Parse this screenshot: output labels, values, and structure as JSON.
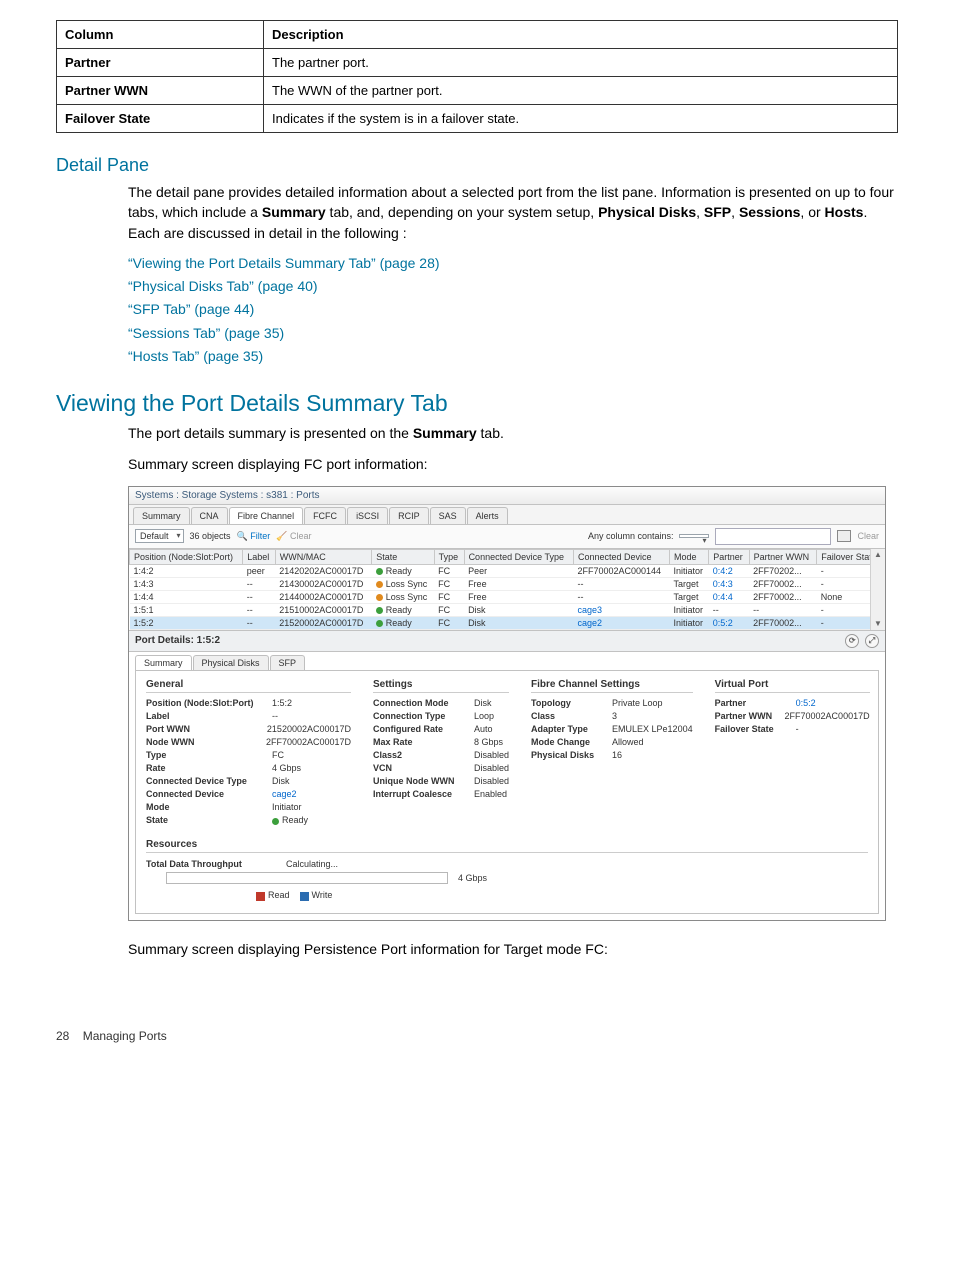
{
  "def_table": {
    "header": {
      "col1": "Column",
      "col2": "Description"
    },
    "rows": [
      {
        "c1": "Partner",
        "c2": "The partner port."
      },
      {
        "c1": "Partner WWN",
        "c2": "The WWN of the partner port."
      },
      {
        "c1": "Failover State",
        "c2": "Indicates if the system is in a failover state."
      }
    ]
  },
  "detail_pane": {
    "heading": "Detail Pane",
    "para_lead": "The detail pane provides detailed information about a selected port from the list pane. Information is presented on up to four tabs, which include a ",
    "para_mid1": " tab, and, depending on your system setup, ",
    "para_tail": ".  Each are discussed in detail in the following :",
    "bold_terms": {
      "summary": "Summary",
      "pd": "Physical Disks",
      "sfp": "SFP",
      "sessions": "Sessions",
      "hosts": "Hosts"
    },
    "links": [
      "“Viewing the Port Details Summary Tab” (page 28)",
      "“Physical Disks Tab” (page 40)",
      "“SFP Tab” (page 44)",
      "“Sessions Tab” (page 35)",
      "“Hosts Tab” (page 35)"
    ]
  },
  "viewing": {
    "heading": "Viewing the Port Details Summary Tab",
    "line1_lead": "The port details summary is presented on the ",
    "line1_bold": "Summary",
    "line1_tail": " tab.",
    "line2": "Summary screen displaying FC port information:",
    "caption_after": "Summary screen displaying Persistence Port information for Target mode FC:"
  },
  "footer": {
    "pageno": "28",
    "section": "Managing Ports"
  },
  "shot": {
    "title": "Systems : Storage Systems : s381 : Ports",
    "top_tabs": [
      "Summary",
      "CNA",
      "Fibre Channel",
      "FCFC",
      "iSCSI",
      "RCIP",
      "SAS",
      "Alerts"
    ],
    "top_tabs_active_index": 2,
    "filter": {
      "default": "Default",
      "count": "36 objects",
      "filter_lbl": "Filter",
      "clear_lbl": "Clear",
      "any_col": "Any column contains:",
      "clear_right": "Clear"
    },
    "columns": [
      "Position (Node:Slot:Port)",
      "Label",
      "WWN/MAC",
      "State",
      "Type",
      "Connected Device Type",
      "Connected Device",
      "Mode",
      "Partner",
      "Partner WWN",
      "Failover State"
    ],
    "rows": [
      {
        "pos": "1:4:2",
        "label": "peer",
        "wwn": "21420202AC00017D",
        "state": "Ready",
        "state_color": "green",
        "type": "FC",
        "cdt": "Peer",
        "cdev": "2FF70002AC000144",
        "cdev_link": false,
        "mode": "Initiator",
        "partner": "0:4:2",
        "pwwn": "2FF70202...",
        "fo": "-"
      },
      {
        "pos": "1:4:3",
        "label": "--",
        "wwn": "21430002AC00017D",
        "state": "Loss Sync",
        "state_color": "orange",
        "type": "FC",
        "cdt": "Free",
        "cdev": "--",
        "cdev_link": false,
        "mode": "Target",
        "partner": "0:4:3",
        "pwwn": "2FF70002...",
        "fo": "-"
      },
      {
        "pos": "1:4:4",
        "label": "--",
        "wwn": "21440002AC00017D",
        "state": "Loss Sync",
        "state_color": "orange",
        "type": "FC",
        "cdt": "Free",
        "cdev": "--",
        "cdev_link": false,
        "mode": "Target",
        "partner": "0:4:4",
        "pwwn": "2FF70002...",
        "fo": "None"
      },
      {
        "pos": "1:5:1",
        "label": "--",
        "wwn": "21510002AC00017D",
        "state": "Ready",
        "state_color": "green",
        "type": "FC",
        "cdt": "Disk",
        "cdev": "cage3",
        "cdev_link": true,
        "mode": "Initiator",
        "partner": "--",
        "pwwn": "--",
        "fo": "-"
      },
      {
        "pos": "1:5:2",
        "label": "--",
        "wwn": "21520002AC00017D",
        "state": "Ready",
        "state_color": "green",
        "type": "FC",
        "cdt": "Disk",
        "cdev": "cage2",
        "cdev_link": true,
        "mode": "Initiator",
        "partner": "0:5:2",
        "pwwn": "2FF70002...",
        "fo": "-",
        "selected": true
      }
    ],
    "detail_title": "Port Details: 1:5:2",
    "subtabs": [
      "Summary",
      "Physical Disks",
      "SFP"
    ],
    "subtabs_active_index": 0,
    "panels": {
      "general": {
        "title": "General",
        "items": [
          {
            "k": "Position (Node:Slot:Port)",
            "v": "1:5:2"
          },
          {
            "k": "Label",
            "v": "--"
          },
          {
            "k": "Port WWN",
            "v": "21520002AC00017D"
          },
          {
            "k": "Node WWN",
            "v": "2FF70002AC00017D"
          },
          {
            "k": "Type",
            "v": "FC"
          },
          {
            "k": "Rate",
            "v": "4 Gbps"
          },
          {
            "k": "Connected Device Type",
            "v": "Disk"
          },
          {
            "k": "Connected Device",
            "v": "cage2",
            "link": true
          },
          {
            "k": "Mode",
            "v": "Initiator"
          },
          {
            "k": "State",
            "v": "Ready",
            "dot": "green"
          }
        ]
      },
      "settings": {
        "title": "Settings",
        "items": [
          {
            "k": "Connection Mode",
            "v": "Disk"
          },
          {
            "k": "Connection Type",
            "v": "Loop"
          },
          {
            "k": "Configured Rate",
            "v": "Auto"
          },
          {
            "k": "Max Rate",
            "v": "8 Gbps"
          },
          {
            "k": "Class2",
            "v": "Disabled"
          },
          {
            "k": "VCN",
            "v": "Disabled"
          },
          {
            "k": "Unique Node WWN",
            "v": "Disabled"
          },
          {
            "k": "Interrupt Coalesce",
            "v": "Enabled"
          }
        ]
      },
      "fcs": {
        "title": "Fibre Channel Settings",
        "items": [
          {
            "k": "Topology",
            "v": "Private Loop"
          },
          {
            "k": "Class",
            "v": "3"
          },
          {
            "k": "Adapter Type",
            "v": "EMULEX LPe12004"
          },
          {
            "k": "Mode Change",
            "v": "Allowed"
          },
          {
            "k": "Physical Disks",
            "v": "16"
          }
        ]
      },
      "vport": {
        "title": "Virtual Port",
        "items": [
          {
            "k": "Partner",
            "v": "0:5:2",
            "link": true
          },
          {
            "k": "Partner WWN",
            "v": "2FF70002AC00017D"
          },
          {
            "k": "Failover State",
            "v": "-"
          }
        ]
      },
      "resources": {
        "title": "Resources",
        "thru_lbl": "Total Data Throughput",
        "thru_val": "Calculating...",
        "thru_max": "4 Gbps",
        "legend_read": "Read",
        "legend_write": "Write"
      }
    }
  }
}
